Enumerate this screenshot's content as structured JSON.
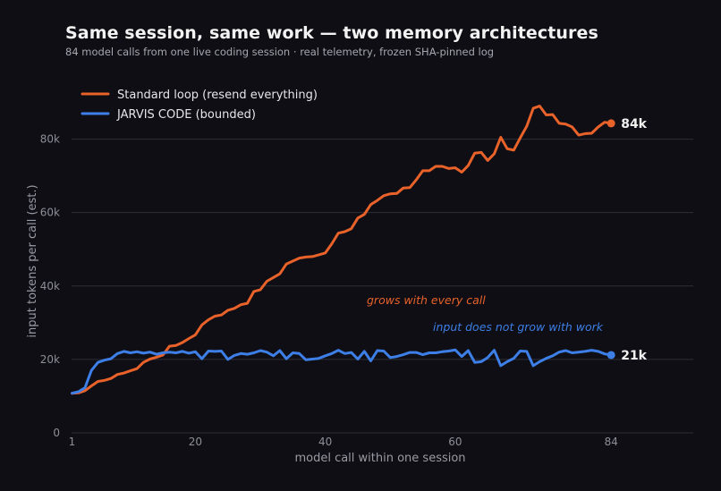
{
  "chart_data": {
    "type": "line",
    "title": "Same session, same work — two memory architectures",
    "subtitle": "84 model calls from one live coding session · real telemetry, frozen SHA-pinned log",
    "xlabel": "model call within one session",
    "ylabel": "input tokens per call (est.)",
    "xlim": [
      0,
      96
    ],
    "ylim": [
      0,
      95000
    ],
    "xticks": [
      1,
      20,
      40,
      60,
      84
    ],
    "xtick_labels": [
      "1",
      "20",
      "40",
      "60",
      "84"
    ],
    "yticks": [
      0,
      20000,
      40000,
      60000,
      80000
    ],
    "ytick_labels": [
      "0",
      "20k",
      "40k",
      "60k",
      "80k"
    ],
    "grid": "horizontal",
    "legend_position": "top-left",
    "series": [
      {
        "name": "Standard loop (resend everything)",
        "color": "#e8622a",
        "end_label": "84k",
        "x": [
          1,
          2,
          3,
          4,
          5,
          6,
          7,
          8,
          9,
          10,
          11,
          12,
          13,
          14,
          15,
          16,
          17,
          18,
          19,
          20,
          21,
          22,
          23,
          24,
          25,
          26,
          27,
          28,
          29,
          30,
          31,
          32,
          33,
          34,
          35,
          36,
          37,
          38,
          39,
          40,
          41,
          42,
          43,
          44,
          45,
          46,
          47,
          48,
          49,
          50,
          51,
          52,
          53,
          54,
          55,
          56,
          57,
          58,
          59,
          60,
          61,
          62,
          63,
          64,
          65,
          66,
          67,
          68,
          69,
          70,
          71,
          72,
          73,
          74,
          75,
          76,
          77,
          78,
          79,
          80,
          81,
          82,
          83,
          84
        ],
        "values": [
          10800,
          10900,
          11500,
          12800,
          14000,
          14300,
          14800,
          15900,
          16300,
          16900,
          17500,
          19200,
          20100,
          20600,
          21200,
          23600,
          23800,
          24600,
          25700,
          26700,
          29400,
          30800,
          31800,
          32100,
          33400,
          33900,
          34900,
          35300,
          38500,
          39000,
          41300,
          42300,
          43300,
          46000,
          46800,
          47600,
          47900,
          48000,
          48500,
          49000,
          51500,
          54400,
          54800,
          55600,
          58500,
          59500,
          62200,
          63300,
          64600,
          65100,
          65200,
          66700,
          66800,
          68900,
          71400,
          71400,
          72600,
          72600,
          72000,
          72200,
          71000,
          72800,
          76200,
          76400,
          74200,
          76000,
          80500,
          77400,
          77000,
          80300,
          83500,
          88400,
          89000,
          86600,
          86700,
          84300,
          84100,
          83300,
          81100,
          81500,
          81600,
          83300,
          84600,
          84300
        ]
      },
      {
        "name": "JARVIS CODE (bounded)",
        "color": "#3d7fe6",
        "end_label": "21k",
        "x": [
          1,
          2,
          3,
          4,
          5,
          6,
          7,
          8,
          9,
          10,
          11,
          12,
          13,
          14,
          15,
          16,
          17,
          18,
          19,
          20,
          21,
          22,
          23,
          24,
          25,
          26,
          27,
          28,
          29,
          30,
          31,
          32,
          33,
          34,
          35,
          36,
          37,
          38,
          39,
          40,
          41,
          42,
          43,
          44,
          45,
          46,
          47,
          48,
          49,
          50,
          51,
          52,
          53,
          54,
          55,
          56,
          57,
          58,
          59,
          60,
          61,
          62,
          63,
          64,
          65,
          66,
          67,
          68,
          69,
          70,
          71,
          72,
          73,
          74,
          75,
          76,
          77,
          78,
          79,
          80,
          81,
          82,
          83,
          84
        ],
        "values": [
          10800,
          11200,
          12300,
          17000,
          19200,
          19800,
          20200,
          21600,
          22200,
          21800,
          22100,
          21700,
          22000,
          21400,
          21800,
          22000,
          21800,
          22200,
          21700,
          22100,
          20200,
          22300,
          22200,
          22300,
          20000,
          21100,
          21600,
          21400,
          21800,
          22400,
          22000,
          21000,
          22400,
          20200,
          21800,
          21600,
          19900,
          20100,
          20300,
          21000,
          21600,
          22500,
          21600,
          21900,
          20100,
          22200,
          19600,
          22400,
          22300,
          20500,
          20800,
          21300,
          21900,
          21900,
          21300,
          21800,
          21800,
          22100,
          22300,
          22600,
          20800,
          22400,
          19200,
          19400,
          20500,
          22500,
          18300,
          19400,
          20300,
          22300,
          22200,
          18300,
          19400,
          20300,
          21000,
          22000,
          22400,
          21800,
          22000,
          22200,
          22500,
          22200,
          21500,
          21200
        ]
      }
    ],
    "annotations": [
      {
        "text": "grows with every call",
        "color": "#e8622a"
      },
      {
        "text": "input does not grow with work",
        "color": "#3d7fe6"
      }
    ]
  }
}
